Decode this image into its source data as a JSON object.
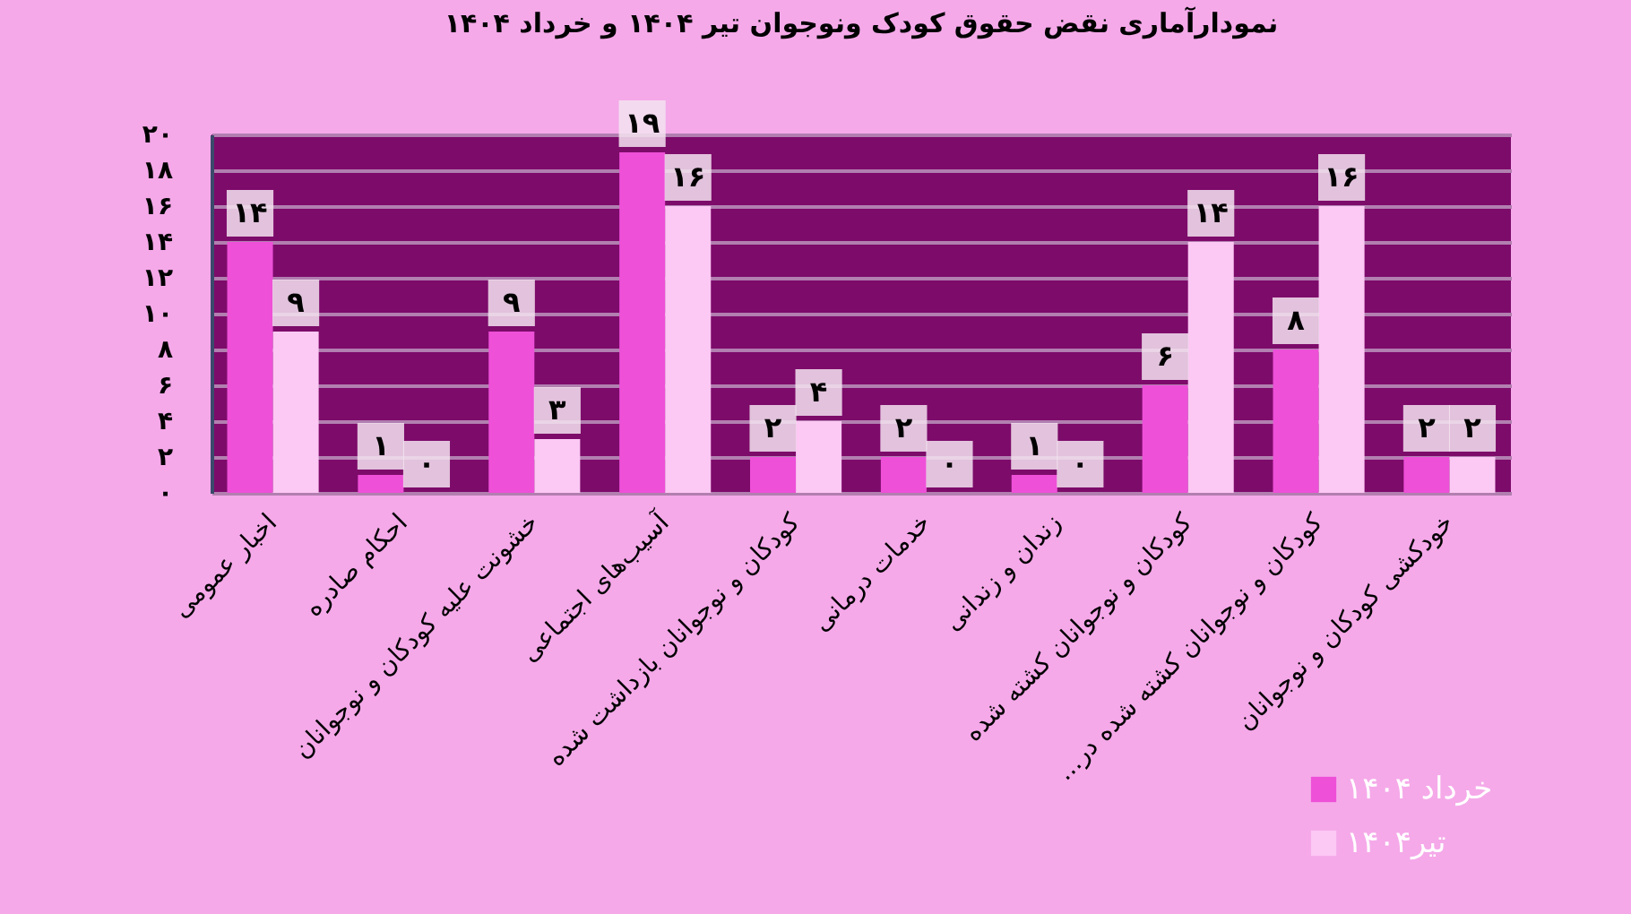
{
  "chart_data": {
    "type": "bar",
    "title": "نمودارآماری نقض حقوق کودک ونوجوان تیر ۱۴۰۴ و خرداد ۱۴۰۴",
    "categories": [
      "اخبار عمومی",
      "احکام صادره",
      "خشونت علیه کودکان و نوجوانان",
      "آسیب‌های اجتماعی",
      "کودکان و نوجوانان بازداشت شده",
      "خدمات درمانی",
      "زندان و زندانی",
      "کودکان و نوجوانان کشته شده",
      "کودکان و نوجوانان کشته شده در...",
      "خودکشی کودکان و نوجوانان"
    ],
    "series": [
      {
        "name": "خرداد ۱۴۰۴",
        "color": "#ee50d8",
        "values": [
          14,
          1,
          9,
          19,
          2,
          2,
          1,
          6,
          8,
          2
        ],
        "value_labels": [
          "۱۴",
          "۱",
          "۹",
          "۱۹",
          "۲",
          "۲",
          "۱",
          "۶",
          "۸",
          "۲"
        ]
      },
      {
        "name": "تیر۱۴۰۴",
        "color": "#fcc8f4",
        "values": [
          9,
          0,
          3,
          16,
          4,
          0,
          0,
          14,
          16,
          2
        ],
        "value_labels": [
          "۹",
          "۰",
          "۳",
          "۱۶",
          "۴",
          "۰",
          "۰",
          "۱۴",
          "۱۶",
          "۲"
        ]
      }
    ],
    "ylim": [
      0,
      20
    ],
    "yticks": [
      {
        "value": 0,
        "label": "۰"
      },
      {
        "value": 2,
        "label": "۲"
      },
      {
        "value": 4,
        "label": "۴"
      },
      {
        "value": 6,
        "label": "۶"
      },
      {
        "value": 8,
        "label": "۸"
      },
      {
        "value": 10,
        "label": "۱۰"
      },
      {
        "value": 12,
        "label": "۱۲"
      },
      {
        "value": 14,
        "label": "۱۴"
      },
      {
        "value": 16,
        "label": "۱۶"
      },
      {
        "value": 18,
        "label": "۱۸"
      },
      {
        "value": 20,
        "label": "۲۰"
      }
    ],
    "grid": "y",
    "legend": "bottom right"
  }
}
